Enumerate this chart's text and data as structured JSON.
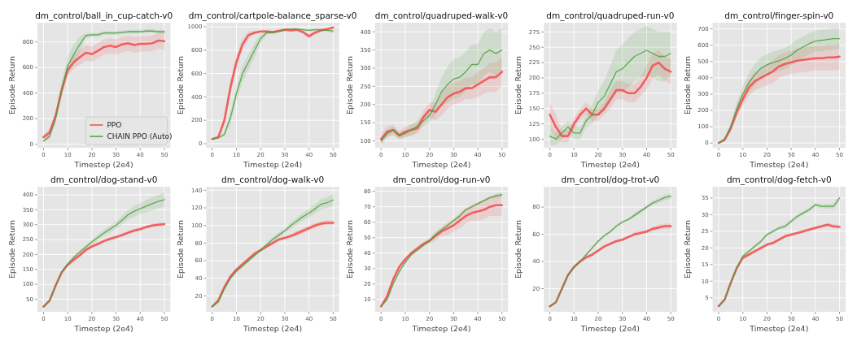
{
  "chart_data": [
    {
      "type": "line",
      "title": "dm_control/ball_in_cup-catch-v0",
      "xlabel": "Timestep (2e4)",
      "ylabel": "Episode Return",
      "x": [
        0,
        2.5,
        5,
        7.5,
        10,
        12.5,
        15,
        17.5,
        20,
        22.5,
        25,
        27.5,
        30,
        32.5,
        35,
        37.5,
        40,
        42.5,
        45,
        47.5,
        50
      ],
      "xlim": [
        -2.5,
        52.5
      ],
      "xticks": [
        0,
        10,
        20,
        30,
        40,
        50
      ],
      "ylim": [
        -28,
        950
      ],
      "yticks": [
        0,
        200,
        400,
        600,
        800
      ],
      "grid": true,
      "legend": "bottom right",
      "series": [
        {
          "name": "PPO",
          "color": "#f24b4b",
          "values": [
            55,
            90,
            220,
            420,
            580,
            640,
            680,
            715,
            705,
            730,
            760,
            770,
            760,
            780,
            790,
            775,
            785,
            785,
            790,
            810,
            805
          ],
          "lower": [
            35,
            60,
            180,
            380,
            540,
            590,
            620,
            655,
            645,
            670,
            700,
            710,
            700,
            720,
            730,
            715,
            725,
            725,
            730,
            750,
            735
          ],
          "upper": [
            75,
            120,
            260,
            460,
            620,
            690,
            740,
            775,
            765,
            790,
            820,
            830,
            820,
            840,
            850,
            835,
            845,
            845,
            850,
            870,
            875
          ]
        },
        {
          "name": "CHAIN PPO (Auto)",
          "color": "#4a9e3c",
          "values": [
            25,
            60,
            200,
            430,
            610,
            700,
            780,
            850,
            855,
            855,
            870,
            870,
            870,
            875,
            880,
            880,
            880,
            885,
            885,
            880,
            880
          ],
          "lower": [
            15,
            40,
            160,
            370,
            540,
            620,
            720,
            830,
            840,
            840,
            855,
            855,
            855,
            860,
            865,
            865,
            865,
            870,
            870,
            865,
            865
          ],
          "upper": [
            35,
            80,
            240,
            490,
            680,
            780,
            840,
            870,
            870,
            870,
            885,
            885,
            885,
            890,
            895,
            895,
            895,
            900,
            900,
            895,
            895
          ]
        }
      ]
    },
    {
      "type": "line",
      "title": "dm_control/cartpole-balance_sparse-v0",
      "xlabel": "Timestep (2e4)",
      "ylabel": "Episode Return",
      "x": [
        0,
        2.5,
        5,
        7.5,
        10,
        12.5,
        15,
        17.5,
        20,
        22.5,
        25,
        27.5,
        30,
        32.5,
        35,
        37.5,
        40,
        42.5,
        45,
        47.5,
        50
      ],
      "xlim": [
        -2.5,
        52.5
      ],
      "xticks": [
        0,
        10,
        20,
        30,
        40,
        50
      ],
      "ylim": [
        -35,
        1035
      ],
      "yticks": [
        0,
        200,
        400,
        600,
        800,
        1000
      ],
      "grid": true,
      "series": [
        {
          "color": "#f24b4b",
          "values": [
            40,
            55,
            200,
            480,
            700,
            850,
            930,
            950,
            960,
            960,
            955,
            965,
            975,
            970,
            975,
            955,
            920,
            950,
            970,
            980,
            995
          ],
          "lower": [
            35,
            45,
            160,
            420,
            640,
            800,
            900,
            935,
            950,
            950,
            945,
            955,
            965,
            960,
            965,
            940,
            900,
            935,
            960,
            970,
            990
          ],
          "upper": [
            45,
            65,
            240,
            540,
            760,
            900,
            960,
            965,
            970,
            970,
            965,
            975,
            985,
            980,
            985,
            970,
            940,
            965,
            980,
            990,
            1000
          ]
        },
        {
          "color": "#4a9e3c",
          "values": [
            40,
            50,
            80,
            220,
            430,
            600,
            700,
            800,
            900,
            950,
            950,
            960,
            975,
            980,
            980,
            975,
            970,
            975,
            975,
            970,
            965
          ],
          "lower": [
            35,
            45,
            60,
            170,
            370,
            530,
            630,
            740,
            860,
            930,
            940,
            950,
            965,
            970,
            970,
            965,
            960,
            965,
            965,
            955,
            945
          ],
          "upper": [
            45,
            55,
            100,
            270,
            490,
            670,
            770,
            860,
            940,
            970,
            960,
            970,
            985,
            990,
            990,
            985,
            980,
            985,
            985,
            985,
            985
          ]
        }
      ]
    },
    {
      "type": "line",
      "title": "dm_control/quadruped-walk-v0",
      "xlabel": "Timestep (2e4)",
      "ylabel": "Episode Return",
      "x": [
        0,
        2.5,
        5,
        7.5,
        10,
        12.5,
        15,
        17.5,
        20,
        22.5,
        25,
        27.5,
        30,
        32.5,
        35,
        37.5,
        40,
        42.5,
        45,
        47.5,
        50
      ],
      "xlim": [
        -2.5,
        52.5
      ],
      "xticks": [
        0,
        10,
        20,
        30,
        40,
        50
      ],
      "ylim": [
        81,
        425
      ],
      "yticks": [
        100,
        150,
        200,
        250,
        300,
        350,
        400
      ],
      "grid": true,
      "series": [
        {
          "color": "#f24b4b",
          "values": [
            105,
            125,
            130,
            115,
            125,
            130,
            135,
            165,
            185,
            180,
            200,
            220,
            230,
            235,
            245,
            245,
            255,
            265,
            275,
            275,
            290
          ],
          "lower": [
            90,
            110,
            115,
            105,
            110,
            115,
            120,
            145,
            165,
            155,
            170,
            190,
            200,
            205,
            215,
            215,
            220,
            230,
            235,
            235,
            250
          ],
          "upper": [
            120,
            140,
            145,
            125,
            140,
            145,
            150,
            185,
            205,
            205,
            230,
            250,
            260,
            265,
            275,
            275,
            290,
            300,
            315,
            315,
            330
          ]
        },
        {
          "color": "#4a9e3c",
          "values": [
            100,
            120,
            130,
            115,
            120,
            130,
            140,
            155,
            170,
            200,
            235,
            255,
            270,
            275,
            290,
            310,
            310,
            340,
            350,
            340,
            350
          ],
          "lower": [
            90,
            110,
            120,
            105,
            110,
            115,
            125,
            140,
            150,
            170,
            195,
            205,
            215,
            220,
            235,
            255,
            255,
            280,
            290,
            280,
            290
          ],
          "upper": [
            110,
            130,
            140,
            125,
            130,
            145,
            155,
            170,
            190,
            230,
            275,
            305,
            325,
            330,
            345,
            365,
            365,
            400,
            410,
            400,
            410
          ]
        }
      ]
    },
    {
      "type": "line",
      "title": "dm_control/quadruped-run-v0",
      "xlabel": "Timestep (2e4)",
      "ylabel": "Episode Return",
      "x": [
        0,
        2.5,
        5,
        7.5,
        10,
        12.5,
        15,
        17.5,
        20,
        22.5,
        25,
        27.5,
        30,
        32.5,
        35,
        37.5,
        40,
        42.5,
        45,
        47.5,
        50
      ],
      "xlim": [
        -2.5,
        52.5
      ],
      "xticks": [
        0,
        10,
        20,
        30,
        40,
        50
      ],
      "ylim": [
        86,
        290
      ],
      "yticks": [
        100,
        125,
        150,
        175,
        200,
        225,
        250,
        275
      ],
      "grid": true,
      "series": [
        {
          "color": "#f24b4b",
          "values": [
            140,
            120,
            105,
            105,
            125,
            140,
            150,
            140,
            140,
            150,
            165,
            180,
            180,
            175,
            175,
            185,
            200,
            220,
            225,
            215,
            210
          ],
          "lower": [
            120,
            100,
            95,
            95,
            115,
            130,
            140,
            130,
            130,
            140,
            150,
            165,
            165,
            160,
            160,
            170,
            180,
            200,
            205,
            195,
            190
          ],
          "upper": [
            160,
            140,
            115,
            115,
            135,
            150,
            160,
            150,
            150,
            160,
            180,
            195,
            195,
            190,
            190,
            200,
            220,
            240,
            245,
            235,
            230
          ]
        },
        {
          "color": "#4a9e3c",
          "values": [
            105,
            100,
            110,
            120,
            110,
            110,
            130,
            140,
            160,
            170,
            190,
            210,
            215,
            225,
            235,
            240,
            245,
            240,
            235,
            235,
            240
          ],
          "lower": [
            90,
            90,
            100,
            110,
            100,
            100,
            120,
            125,
            140,
            145,
            160,
            175,
            175,
            185,
            195,
            200,
            205,
            200,
            195,
            195,
            205
          ],
          "upper": [
            120,
            110,
            120,
            130,
            120,
            120,
            140,
            155,
            180,
            195,
            220,
            245,
            255,
            265,
            275,
            280,
            285,
            280,
            275,
            275,
            275
          ]
        }
      ]
    },
    {
      "type": "line",
      "title": "dm_control/finger-spin-v0",
      "xlabel": "Timestep (2e4)",
      "ylabel": "Episode Return",
      "x": [
        0,
        2.5,
        5,
        7.5,
        10,
        12.5,
        15,
        17.5,
        20,
        22.5,
        25,
        27.5,
        30,
        32.5,
        35,
        37.5,
        40,
        42.5,
        45,
        47.5,
        50
      ],
      "xlim": [
        -2.5,
        52.5
      ],
      "xticks": [
        0,
        10,
        20,
        30,
        40,
        50
      ],
      "ylim": [
        -29,
        738
      ],
      "yticks": [
        0,
        100,
        200,
        300,
        400,
        500,
        600,
        700
      ],
      "grid": true,
      "series": [
        {
          "color": "#f24b4b",
          "values": [
            0,
            20,
            90,
            190,
            270,
            340,
            380,
            400,
            420,
            440,
            470,
            485,
            495,
            505,
            510,
            515,
            520,
            520,
            525,
            525,
            530
          ],
          "lower": [
            0,
            10,
            70,
            160,
            230,
            290,
            325,
            340,
            355,
            370,
            400,
            415,
            425,
            430,
            435,
            440,
            445,
            445,
            445,
            445,
            450
          ],
          "upper": [
            0,
            30,
            110,
            220,
            310,
            390,
            435,
            460,
            485,
            510,
            540,
            555,
            565,
            580,
            585,
            590,
            595,
            595,
            605,
            605,
            610
          ]
        },
        {
          "color": "#4a9e3c",
          "values": [
            0,
            25,
            100,
            210,
            300,
            370,
            420,
            460,
            480,
            495,
            505,
            520,
            540,
            570,
            590,
            610,
            625,
            630,
            635,
            640,
            640
          ],
          "lower": [
            0,
            15,
            75,
            170,
            250,
            310,
            355,
            395,
            415,
            430,
            440,
            455,
            475,
            505,
            525,
            545,
            560,
            565,
            570,
            575,
            575
          ],
          "upper": [
            0,
            35,
            125,
            250,
            350,
            430,
            485,
            525,
            545,
            560,
            570,
            585,
            605,
            635,
            655,
            675,
            690,
            695,
            700,
            705,
            705
          ]
        }
      ]
    },
    {
      "type": "line",
      "title": "dm_control/dog-stand-v0",
      "xlabel": "Timestep (2e4)",
      "ylabel": "Episode Return",
      "x": [
        0,
        2.5,
        5,
        7.5,
        10,
        12.5,
        15,
        17.5,
        20,
        22.5,
        25,
        27.5,
        30,
        32.5,
        35,
        37.5,
        40,
        42.5,
        45,
        47.5,
        50
      ],
      "xlim": [
        -2.5,
        52.5
      ],
      "xticks": [
        0,
        10,
        20,
        30,
        40,
        50
      ],
      "ylim": [
        8,
        427
      ],
      "yticks": [
        50,
        100,
        150,
        200,
        250,
        300,
        350,
        400
      ],
      "grid": true,
      "series": [
        {
          "color": "#f24b4b",
          "values": [
            25,
            45,
            95,
            140,
            165,
            182,
            197,
            215,
            227,
            235,
            245,
            252,
            258,
            265,
            273,
            280,
            285,
            292,
            297,
            300,
            302
          ],
          "lower": [
            22,
            41,
            90,
            134,
            159,
            176,
            191,
            209,
            221,
            229,
            239,
            246,
            252,
            259,
            267,
            274,
            279,
            286,
            291,
            294,
            296
          ],
          "upper": [
            28,
            49,
            100,
            146,
            171,
            188,
            203,
            221,
            233,
            241,
            251,
            258,
            264,
            271,
            279,
            286,
            291,
            298,
            303,
            306,
            308
          ]
        },
        {
          "color": "#4a9e3c",
          "values": [
            25,
            45,
            95,
            140,
            168,
            190,
            208,
            225,
            242,
            257,
            272,
            285,
            298,
            315,
            333,
            345,
            353,
            362,
            370,
            378,
            384
          ],
          "lower": [
            22,
            41,
            90,
            134,
            162,
            184,
            202,
            217,
            234,
            247,
            262,
            273,
            286,
            301,
            317,
            327,
            335,
            342,
            348,
            356,
            360
          ],
          "upper": [
            28,
            49,
            100,
            146,
            174,
            196,
            214,
            233,
            250,
            267,
            282,
            297,
            310,
            329,
            349,
            363,
            371,
            382,
            392,
            400,
            408
          ]
        }
      ]
    },
    {
      "type": "line",
      "title": "dm_control/dog-walk-v0",
      "xlabel": "Timestep (2e4)",
      "ylabel": "Episode Return",
      "x": [
        0,
        2.5,
        5,
        7.5,
        10,
        12.5,
        15,
        17.5,
        20,
        22.5,
        25,
        27.5,
        30,
        32.5,
        35,
        37.5,
        40,
        42.5,
        45,
        47.5,
        50
      ],
      "xlim": [
        -2.5,
        52.5
      ],
      "xticks": [
        0,
        10,
        20,
        30,
        40,
        50
      ],
      "ylim": [
        2,
        144
      ],
      "yticks": [
        20,
        40,
        60,
        80,
        100,
        120,
        140
      ],
      "grid": true,
      "series": [
        {
          "color": "#f24b4b",
          "values": [
            8,
            15,
            30,
            42,
            50,
            56,
            62,
            68,
            72,
            76,
            80,
            84,
            86,
            88,
            91,
            94,
            97,
            100,
            102,
            103,
            103
          ],
          "lower": [
            7,
            14,
            28,
            40,
            48,
            54,
            60,
            66,
            70,
            74,
            78,
            82,
            84,
            86,
            88,
            91,
            94,
            97,
            99,
            100,
            100
          ],
          "upper": [
            9,
            16,
            32,
            44,
            52,
            58,
            64,
            70,
            74,
            78,
            82,
            86,
            88,
            90,
            94,
            97,
            100,
            103,
            105,
            106,
            106
          ]
        },
        {
          "color": "#4a9e3c",
          "values": [
            8,
            13,
            28,
            40,
            48,
            54,
            60,
            66,
            72,
            78,
            84,
            89,
            94,
            100,
            105,
            110,
            114,
            119,
            124,
            126,
            129
          ],
          "lower": [
            7,
            12,
            26,
            38,
            46,
            52,
            58,
            64,
            70,
            75,
            81,
            86,
            91,
            96,
            101,
            106,
            109,
            114,
            118,
            120,
            122
          ],
          "upper": [
            9,
            14,
            30,
            42,
            50,
            56,
            62,
            68,
            74,
            81,
            87,
            92,
            97,
            104,
            109,
            114,
            119,
            124,
            130,
            132,
            136
          ]
        }
      ]
    },
    {
      "type": "line",
      "title": "dm_control/dog-run-v0",
      "xlabel": "Timestep (2e4)",
      "ylabel": "Episode Return",
      "x": [
        0,
        2.5,
        5,
        7.5,
        10,
        12.5,
        15,
        17.5,
        20,
        22.5,
        25,
        27.5,
        30,
        32.5,
        35,
        37.5,
        40,
        42.5,
        45,
        47.5,
        50
      ],
      "xlim": [
        -2.5,
        52.5
      ],
      "xticks": [
        0,
        10,
        20,
        30,
        40,
        50
      ],
      "ylim": [
        2,
        83
      ],
      "yticks": [
        10,
        20,
        30,
        40,
        50,
        60,
        70,
        80
      ],
      "grid": true,
      "series": [
        {
          "color": "#f24b4b",
          "values": [
            5.5,
            12,
            23,
            31,
            36,
            40,
            43,
            46,
            48,
            51,
            54,
            56,
            58,
            61,
            64,
            66,
            67,
            68,
            70,
            71,
            71
          ],
          "lower": [
            5,
            11,
            22,
            30,
            35,
            39,
            42,
            45,
            46,
            48,
            51,
            52,
            54,
            56,
            59,
            61,
            61,
            62,
            64,
            64,
            64
          ],
          "upper": [
            6,
            13,
            24,
            32,
            37,
            41,
            44,
            47,
            50,
            54,
            57,
            60,
            62,
            66,
            69,
            71,
            73,
            74,
            76,
            78,
            78
          ]
        },
        {
          "color": "#4a9e3c",
          "values": [
            5.5,
            10,
            20,
            28,
            34,
            39,
            42,
            45,
            48,
            52,
            55,
            58,
            61,
            64,
            68,
            70,
            72,
            74,
            76,
            77,
            78
          ],
          "lower": [
            5,
            9,
            19,
            27,
            33,
            38,
            41,
            44,
            47,
            51,
            54,
            57,
            60,
            63,
            67,
            69,
            71,
            73,
            75,
            75.5,
            76.5
          ],
          "upper": [
            6,
            11,
            21,
            29,
            35,
            40,
            43,
            46,
            49,
            53,
            56,
            59,
            62,
            65,
            69,
            71,
            73,
            75,
            77,
            78.5,
            79.5
          ]
        }
      ]
    },
    {
      "type": "line",
      "title": "dm_control/dog-trot-v0",
      "xlabel": "Timestep (2e4)",
      "ylabel": "Episode Return",
      "x": [
        0,
        2.5,
        5,
        7.5,
        10,
        12.5,
        15,
        17.5,
        20,
        22.5,
        25,
        27.5,
        30,
        32.5,
        35,
        37.5,
        40,
        42.5,
        45,
        47.5,
        50
      ],
      "xlim": [
        -2.5,
        52.5
      ],
      "xticks": [
        0,
        10,
        20,
        30,
        40,
        50
      ],
      "ylim": [
        3,
        95
      ],
      "yticks": [
        20,
        40,
        60,
        80
      ],
      "grid": true,
      "series": [
        {
          "color": "#f24b4b",
          "values": [
            7,
            10,
            20,
            30,
            36,
            40,
            43,
            45,
            48,
            51,
            53,
            55,
            56,
            58,
            60,
            61,
            62,
            64,
            65,
            66,
            66
          ],
          "lower": [
            6.5,
            9.5,
            19,
            29,
            35,
            39,
            42,
            44,
            47,
            50,
            52,
            54,
            55,
            57,
            58.5,
            59.5,
            60.5,
            62.5,
            63,
            64,
            64
          ],
          "upper": [
            7.5,
            10.5,
            21,
            31,
            37,
            41,
            44,
            46,
            49,
            52,
            54,
            56,
            57,
            59,
            61.5,
            62.5,
            63.5,
            65.5,
            67,
            68,
            68
          ]
        },
        {
          "color": "#4a9e3c",
          "values": [
            7,
            10,
            20,
            30,
            36,
            40,
            45,
            50,
            55,
            59,
            62,
            66,
            69,
            71,
            74,
            77,
            80,
            83,
            85,
            87,
            88
          ],
          "lower": [
            6.5,
            9.5,
            19,
            29,
            35,
            39,
            44,
            49,
            54,
            58,
            61,
            65,
            68,
            70,
            72.5,
            75.5,
            78.5,
            81.5,
            83,
            85,
            86
          ],
          "upper": [
            7.5,
            10.5,
            21,
            31,
            37,
            41,
            46,
            51,
            56,
            60,
            63,
            67,
            70,
            72,
            75.5,
            78.5,
            81.5,
            84.5,
            87,
            89,
            90
          ]
        }
      ]
    },
    {
      "type": "line",
      "title": "dm_control/dog-fetch-v0",
      "xlabel": "Timestep (2e4)",
      "ylabel": "Episode Return",
      "x": [
        0,
        2.5,
        5,
        7.5,
        10,
        12.5,
        15,
        17.5,
        20,
        22.5,
        25,
        27.5,
        30,
        32.5,
        35,
        37.5,
        40,
        42.5,
        45,
        47.5,
        50
      ],
      "xlim": [
        -2.5,
        52.5
      ],
      "xticks": [
        0,
        10,
        20,
        30,
        40,
        50
      ],
      "ylim": [
        0.8,
        38.4
      ],
      "yticks": [
        5,
        10,
        15,
        20,
        25,
        30,
        35
      ],
      "grid": true,
      "series": [
        {
          "color": "#f24b4b",
          "values": [
            2.5,
            4.5,
            9.5,
            14,
            17,
            18,
            19,
            20,
            21,
            21.5,
            22.5,
            23.5,
            24,
            24.5,
            25,
            25.5,
            26,
            26.5,
            27,
            26.5,
            26.3
          ],
          "lower": [
            2.3,
            4.2,
            9,
            13.5,
            16.5,
            17.5,
            18.5,
            19.5,
            20.5,
            21,
            22,
            23,
            23.5,
            24,
            24.5,
            25,
            25.5,
            26,
            26.4,
            25.9,
            25.7
          ],
          "upper": [
            2.7,
            4.8,
            10,
            14.5,
            17.5,
            18.5,
            19.5,
            20.5,
            21.5,
            22,
            23,
            24,
            24.5,
            25,
            25.5,
            26,
            26.5,
            27,
            27.6,
            27.1,
            26.9
          ]
        },
        {
          "color": "#4a9e3c",
          "values": [
            2.5,
            4.5,
            9.5,
            14,
            17.5,
            19,
            20.5,
            22,
            24,
            25,
            26,
            26.5,
            28,
            29.5,
            30.5,
            31.5,
            33,
            32.5,
            32.5,
            32.5,
            35
          ],
          "lower": [
            2.3,
            4.2,
            9,
            13.5,
            17,
            18.5,
            20,
            21.5,
            23.5,
            24.5,
            25.5,
            25.9,
            27.4,
            28.9,
            29.9,
            30.9,
            32.4,
            31.9,
            31.8,
            31.7,
            34
          ],
          "upper": [
            2.7,
            4.8,
            10,
            14.5,
            18,
            19.5,
            21,
            22.5,
            24.5,
            25.5,
            26.5,
            27.1,
            28.6,
            30.1,
            31.1,
            32.1,
            33.6,
            33.1,
            33.2,
            33.3,
            36
          ]
        }
      ]
    }
  ]
}
